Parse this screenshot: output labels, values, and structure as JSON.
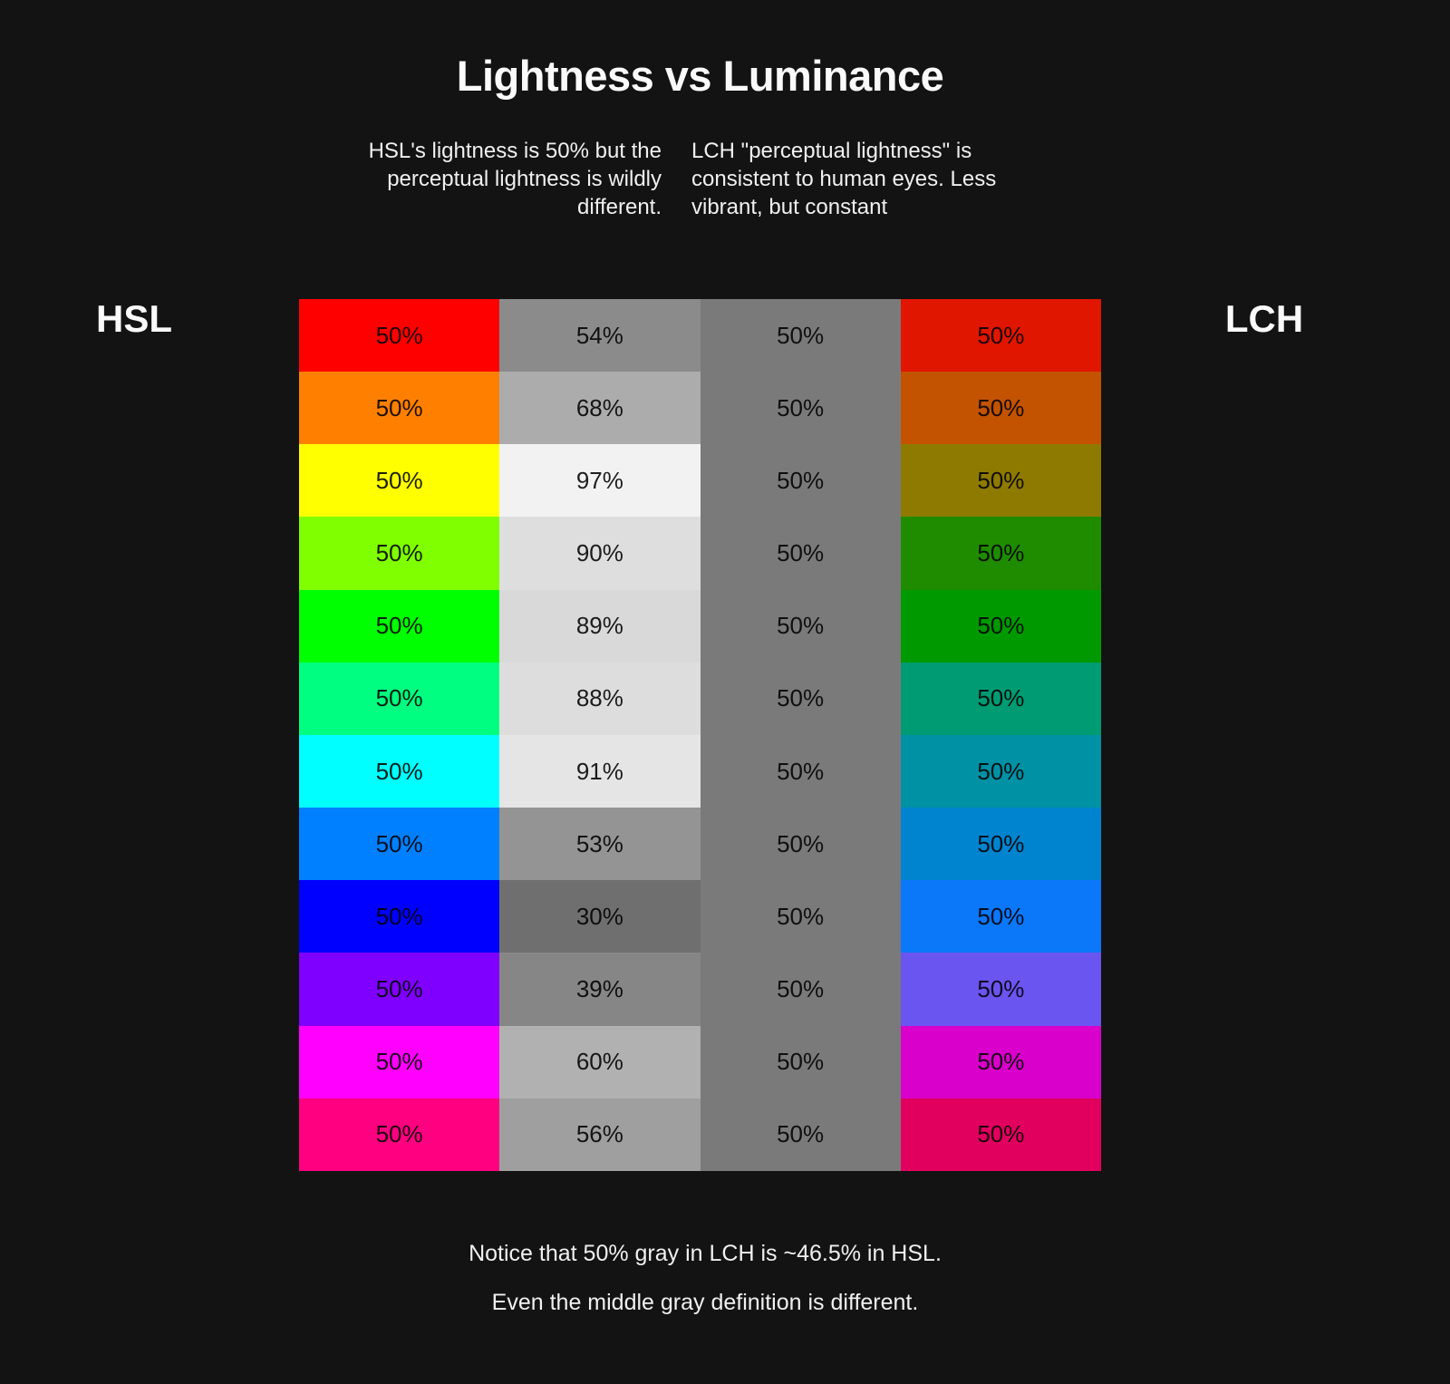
{
  "title": "Lightness vs Luminance",
  "subtitle_left": {
    "lines": [
      "HSL's lightness is 50% but the",
      "perceptual lightness is wildly",
      "different."
    ]
  },
  "subtitle_right": {
    "lines": [
      "LCH \"perceptual lightness\" is",
      "consistent to human eyes. Less",
      "vibrant, but constant"
    ]
  },
  "left_label": "HSL",
  "right_label": "LCH",
  "background_color": "#131313",
  "columns": [
    "hsl",
    "luminance",
    "gray",
    "lch"
  ],
  "rows": [
    {
      "name": "red",
      "cells": {
        "hsl": {
          "color": "#ff0000",
          "label": "50%"
        },
        "luminance": {
          "color": "#8b8b8b",
          "label": "54%"
        },
        "gray": {
          "color": "#7a7a7a",
          "label": "50%"
        },
        "lch": {
          "color": "#e01600",
          "label": "50%"
        }
      }
    },
    {
      "name": "orange",
      "cells": {
        "hsl": {
          "color": "#ff8000",
          "label": "50%"
        },
        "luminance": {
          "color": "#acacac",
          "label": "68%"
        },
        "gray": {
          "color": "#7a7a7a",
          "label": "50%"
        },
        "lch": {
          "color": "#c35300",
          "label": "50%"
        }
      }
    },
    {
      "name": "yellow",
      "cells": {
        "hsl": {
          "color": "#ffff00",
          "label": "50%"
        },
        "luminance": {
          "color": "#f2f2f2",
          "label": "97%"
        },
        "gray": {
          "color": "#7a7a7a",
          "label": "50%"
        },
        "lch": {
          "color": "#8f7a00",
          "label": "50%"
        }
      }
    },
    {
      "name": "chartreuse",
      "cells": {
        "hsl": {
          "color": "#80ff00",
          "label": "50%"
        },
        "luminance": {
          "color": "#dedede",
          "label": "90%"
        },
        "gray": {
          "color": "#7a7a7a",
          "label": "50%"
        },
        "lch": {
          "color": "#1f8c00",
          "label": "50%"
        }
      }
    },
    {
      "name": "green",
      "cells": {
        "hsl": {
          "color": "#00ff00",
          "label": "50%"
        },
        "luminance": {
          "color": "#d9d9d9",
          "label": "89%"
        },
        "gray": {
          "color": "#7a7a7a",
          "label": "50%"
        },
        "lch": {
          "color": "#009a00",
          "label": "50%"
        }
      }
    },
    {
      "name": "spring-green",
      "cells": {
        "hsl": {
          "color": "#00ff80",
          "label": "50%"
        },
        "luminance": {
          "color": "#dddddd",
          "label": "88%"
        },
        "gray": {
          "color": "#7a7a7a",
          "label": "50%"
        },
        "lch": {
          "color": "#009b72",
          "label": "50%"
        }
      }
    },
    {
      "name": "cyan",
      "cells": {
        "hsl": {
          "color": "#00ffff",
          "label": "50%"
        },
        "luminance": {
          "color": "#e5e5e5",
          "label": "91%"
        },
        "gray": {
          "color": "#7a7a7a",
          "label": "50%"
        },
        "lch": {
          "color": "#0091a5",
          "label": "50%"
        }
      }
    },
    {
      "name": "azure",
      "cells": {
        "hsl": {
          "color": "#0080ff",
          "label": "50%"
        },
        "luminance": {
          "color": "#949494",
          "label": "53%"
        },
        "gray": {
          "color": "#7a7a7a",
          "label": "50%"
        },
        "lch": {
          "color": "#0084cf",
          "label": "50%"
        }
      }
    },
    {
      "name": "blue",
      "cells": {
        "hsl": {
          "color": "#0000ff",
          "label": "50%"
        },
        "luminance": {
          "color": "#6f6f6f",
          "label": "30%"
        },
        "gray": {
          "color": "#7a7a7a",
          "label": "50%"
        },
        "lch": {
          "color": "#0b77f9",
          "label": "50%"
        }
      }
    },
    {
      "name": "violet",
      "cells": {
        "hsl": {
          "color": "#8000ff",
          "label": "50%"
        },
        "luminance": {
          "color": "#868686",
          "label": "39%"
        },
        "gray": {
          "color": "#7a7a7a",
          "label": "50%"
        },
        "lch": {
          "color": "#6b55f0",
          "label": "50%"
        }
      }
    },
    {
      "name": "magenta",
      "cells": {
        "hsl": {
          "color": "#ff00ff",
          "label": "50%"
        },
        "luminance": {
          "color": "#b1b1b1",
          "label": "60%"
        },
        "gray": {
          "color": "#7a7a7a",
          "label": "50%"
        },
        "lch": {
          "color": "#d800ca",
          "label": "50%"
        }
      }
    },
    {
      "name": "rose",
      "cells": {
        "hsl": {
          "color": "#ff0080",
          "label": "50%"
        },
        "luminance": {
          "color": "#9f9f9f",
          "label": "56%"
        },
        "gray": {
          "color": "#7a7a7a",
          "label": "50%"
        },
        "lch": {
          "color": "#e2005f",
          "label": "50%"
        }
      }
    }
  ],
  "footer": {
    "line1": "Notice that 50% gray in LCH is ~46.5% in HSL.",
    "line2": "Even the middle gray definition is different."
  }
}
